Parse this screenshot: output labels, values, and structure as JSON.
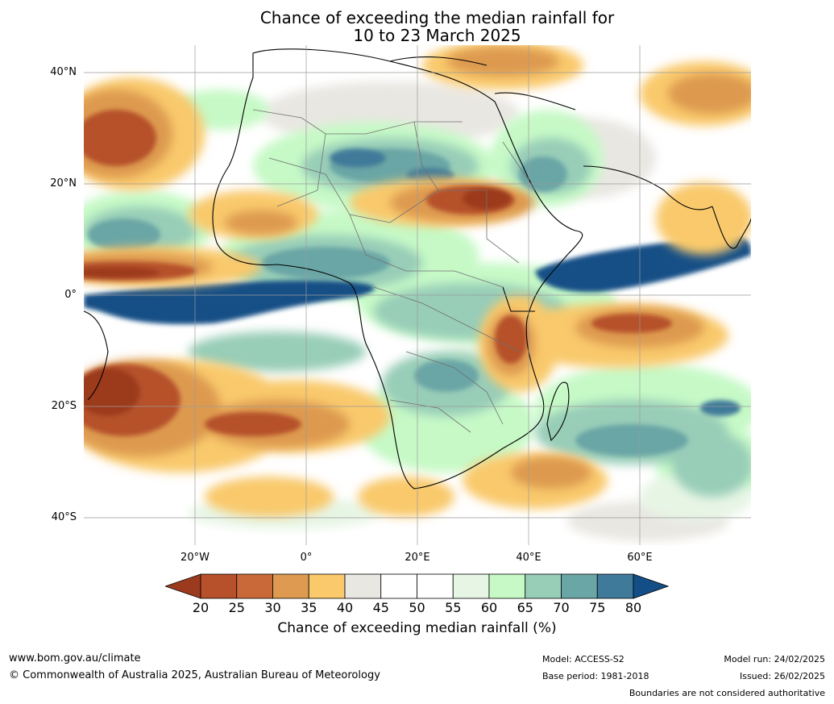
{
  "title": {
    "line1": "Chance of exceeding the median rainfall for",
    "line2": "10 to 23 March 2025"
  },
  "map": {
    "latitude_labels": [
      "40°N",
      "20°N",
      "0°",
      "20°S",
      "40°S"
    ],
    "longitude_labels": [
      "20°W",
      "0°",
      "20°E",
      "40°E",
      "60°E"
    ],
    "region": "Africa and Indian Ocean"
  },
  "colorbar": {
    "ticks": [
      "20",
      "25",
      "30",
      "35",
      "40",
      "45",
      "50",
      "55",
      "60",
      "65",
      "70",
      "75",
      "80"
    ],
    "colors": [
      "#9c3a1d",
      "#b6512b",
      "#c9693a",
      "#dd9a50",
      "#f9c96c",
      "#e9e7e2",
      "#ffffff",
      "#ffffff",
      "#e7f5e5",
      "#c6f9c6",
      "#98cdb8",
      "#6aa6a6",
      "#3f7a9a",
      "#134f86"
    ],
    "label": "Chance of exceeding median rainfall (%)"
  },
  "footer": {
    "website": "www.bom.gov.au/climate",
    "copyright": "© Commonwealth of Australia 2025, Australian Bureau of Meteorology",
    "model": "Model: ACCESS-S2",
    "base_period": "Base period: 1981-2018",
    "model_run": "Model run: 24/02/2025",
    "issued": "Issued: 26/02/2025",
    "disclaimer": "Boundaries are not considered authoritative"
  }
}
